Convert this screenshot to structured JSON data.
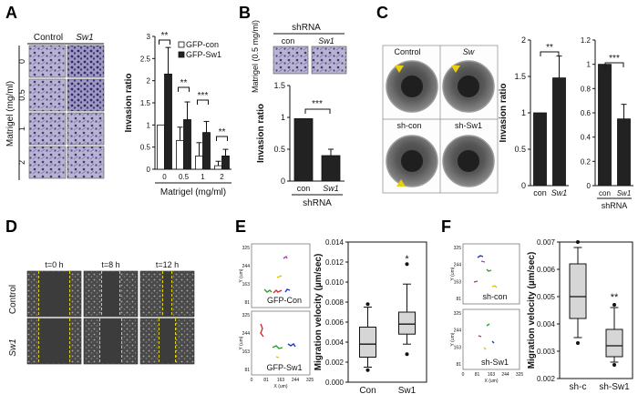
{
  "panel_labels": {
    "A": "A",
    "B": "B",
    "C": "C",
    "D": "D",
    "E": "E",
    "F": "F"
  },
  "colors": {
    "dark_bar": "#222222",
    "light_bar": "#ffffff",
    "micro_bg": "#b7b3cf",
    "micro_dot": "#3b3579",
    "dish_bg": "#6f6f6f",
    "scratch_bg": "#3c3c3c",
    "guide_line": "#e4d400",
    "arrow": "#e8cf10",
    "box_fill": "#d6d6d6"
  },
  "panel_a": {
    "col_headers": [
      "Control",
      "Sw1"
    ],
    "row_labels": [
      "0",
      "0.5",
      "1",
      "2"
    ],
    "y_side_label": "Matrigel (mg/ml)"
  },
  "panel_b": {
    "group_header": "shRNA",
    "col_headers": [
      "con",
      "Sw1"
    ],
    "side_label": "Matrigel (0.5 mg/ml)"
  },
  "panel_c": {
    "labels": [
      "Control",
      "Sw",
      "sh-con",
      "sh-Sw1"
    ]
  },
  "panel_d": {
    "time_labels": [
      "t=0 h",
      "t=8 h",
      "t=12 h"
    ],
    "row_labels": [
      "Control",
      "Sw1"
    ]
  },
  "panel_e": {
    "track_labels": [
      "GFP-Con",
      "GFP-Sw1"
    ],
    "axis_y_label": "Y (um)",
    "axis_x_label": "X (um)",
    "axis_ticks_y": [
      "325",
      "244",
      "163",
      "81"
    ],
    "axis_ticks_x": [
      "0",
      "81",
      "163",
      "244",
      "325"
    ]
  },
  "panel_f": {
    "track_labels": [
      "sh-con",
      "sh-Sw1"
    ],
    "axis_y_label": "Y (um)",
    "axis_x_label": "X (um)",
    "axis_ticks_y": [
      "325",
      "244",
      "163",
      "81"
    ],
    "axis_ticks_x": [
      "0",
      "81",
      "163",
      "244",
      "325"
    ]
  },
  "chart_data": [
    {
      "id": "A",
      "type": "bar",
      "categories": [
        "0",
        "0.5",
        "1",
        "2"
      ],
      "series": [
        {
          "name": "GFP-con",
          "values": [
            1.0,
            0.65,
            0.3,
            0.08
          ],
          "errors": [
            0.0,
            0.3,
            0.3,
            0.1
          ]
        },
        {
          "name": "GFP-Sw1",
          "values": [
            2.15,
            1.12,
            0.83,
            0.3
          ],
          "errors": [
            0.6,
            0.4,
            0.25,
            0.15
          ]
        }
      ],
      "legend": [
        "GFP-con",
        "GFP-Sw1"
      ],
      "xlabel": "Matrigel (mg/ml)",
      "ylabel": "Invasion ratio",
      "ylim": [
        0,
        3
      ],
      "yticks": [
        "0",
        "0.5",
        "1",
        "1.5",
        "2",
        "2.5",
        "3"
      ],
      "annotations": [
        "**",
        "**",
        "***",
        "**"
      ]
    },
    {
      "id": "B",
      "type": "bar",
      "categories": [
        "con",
        "Sw1"
      ],
      "values": [
        0.98,
        0.4
      ],
      "errors": [
        0.0,
        0.1
      ],
      "xlabel": "shRNA",
      "ylabel": "Invasion ratio",
      "ylim": [
        0,
        1.5
      ],
      "yticks": [
        "0",
        "0.5",
        "1",
        "1.5"
      ],
      "annotations": [
        "***"
      ]
    },
    {
      "id": "C1",
      "type": "bar",
      "categories": [
        "con",
        "Sw1"
      ],
      "values": [
        1.0,
        1.48
      ],
      "errors": [
        0.0,
        0.3
      ],
      "ylabel": "Invasion ratio",
      "ylim": [
        0,
        2
      ],
      "yticks": [
        "0",
        "0.5",
        "1",
        "1.5",
        "2"
      ],
      "annotations": [
        "**"
      ]
    },
    {
      "id": "C2",
      "type": "bar",
      "categories": [
        "con",
        "Sw1"
      ],
      "values": [
        1.0,
        0.55
      ],
      "errors": [
        0.0,
        0.12
      ],
      "xlabel": "shRNA",
      "ylim": [
        0,
        1.2
      ],
      "yticks": [
        "0",
        "0.2",
        "0.4",
        "0.6",
        "0.8",
        "1",
        "1.2"
      ],
      "annotations": [
        "***"
      ]
    },
    {
      "id": "E",
      "type": "box",
      "categories": [
        "Con",
        "Sw1"
      ],
      "series": [
        {
          "name": "Con",
          "min": 0.0015,
          "q1": 0.0025,
          "median": 0.0038,
          "q3": 0.0055,
          "max": 0.0075,
          "outliers": [
            0.0078,
            0.0012
          ]
        },
        {
          "name": "Sw1",
          "min": 0.0038,
          "q1": 0.0048,
          "median": 0.0058,
          "q3": 0.007,
          "max": 0.0098,
          "outliers": [
            0.0028,
            0.0118
          ]
        }
      ],
      "ylabel": "Migration velocity (µm/sec)",
      "ylim": [
        0,
        0.014
      ],
      "yticks": [
        "0.000",
        "0.002",
        "0.004",
        "0.006",
        "0.008",
        "0.010",
        "0.012",
        "0.014"
      ],
      "annotations": [
        "*"
      ]
    },
    {
      "id": "F",
      "type": "box",
      "categories": [
        "sh-c",
        "sh-Sw1"
      ],
      "series": [
        {
          "name": "sh-c",
          "min": 0.0035,
          "q1": 0.0042,
          "median": 0.005,
          "q3": 0.0062,
          "max": 0.0068,
          "outliers": [
            0.0033,
            0.007
          ]
        },
        {
          "name": "sh-Sw1",
          "min": 0.0026,
          "q1": 0.0028,
          "median": 0.0032,
          "q3": 0.0038,
          "max": 0.0046,
          "outliers": [
            0.0025,
            0.0047
          ]
        }
      ],
      "ylabel": "Migration velocity (µm/sec)",
      "ylim": [
        0.002,
        0.007
      ],
      "yticks": [
        "0.002",
        "0.003",
        "0.004",
        "0.005",
        "0.006",
        "0.007"
      ],
      "annotations": [
        "**"
      ]
    }
  ]
}
